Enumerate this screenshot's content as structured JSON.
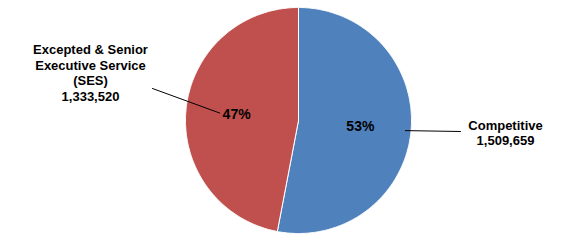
{
  "chart_data": {
    "type": "pie",
    "categories": [
      "Competitive",
      "Excepted & Senior\nExecutive Service\n(SES)"
    ],
    "values": [
      53,
      47
    ],
    "value_labels": [
      "53%",
      "47%"
    ],
    "counts": [
      1509659,
      1333520
    ],
    "colors": [
      "#4f81bd",
      "#c0504d"
    ],
    "data_labels": true,
    "tick_labels": false
  }
}
